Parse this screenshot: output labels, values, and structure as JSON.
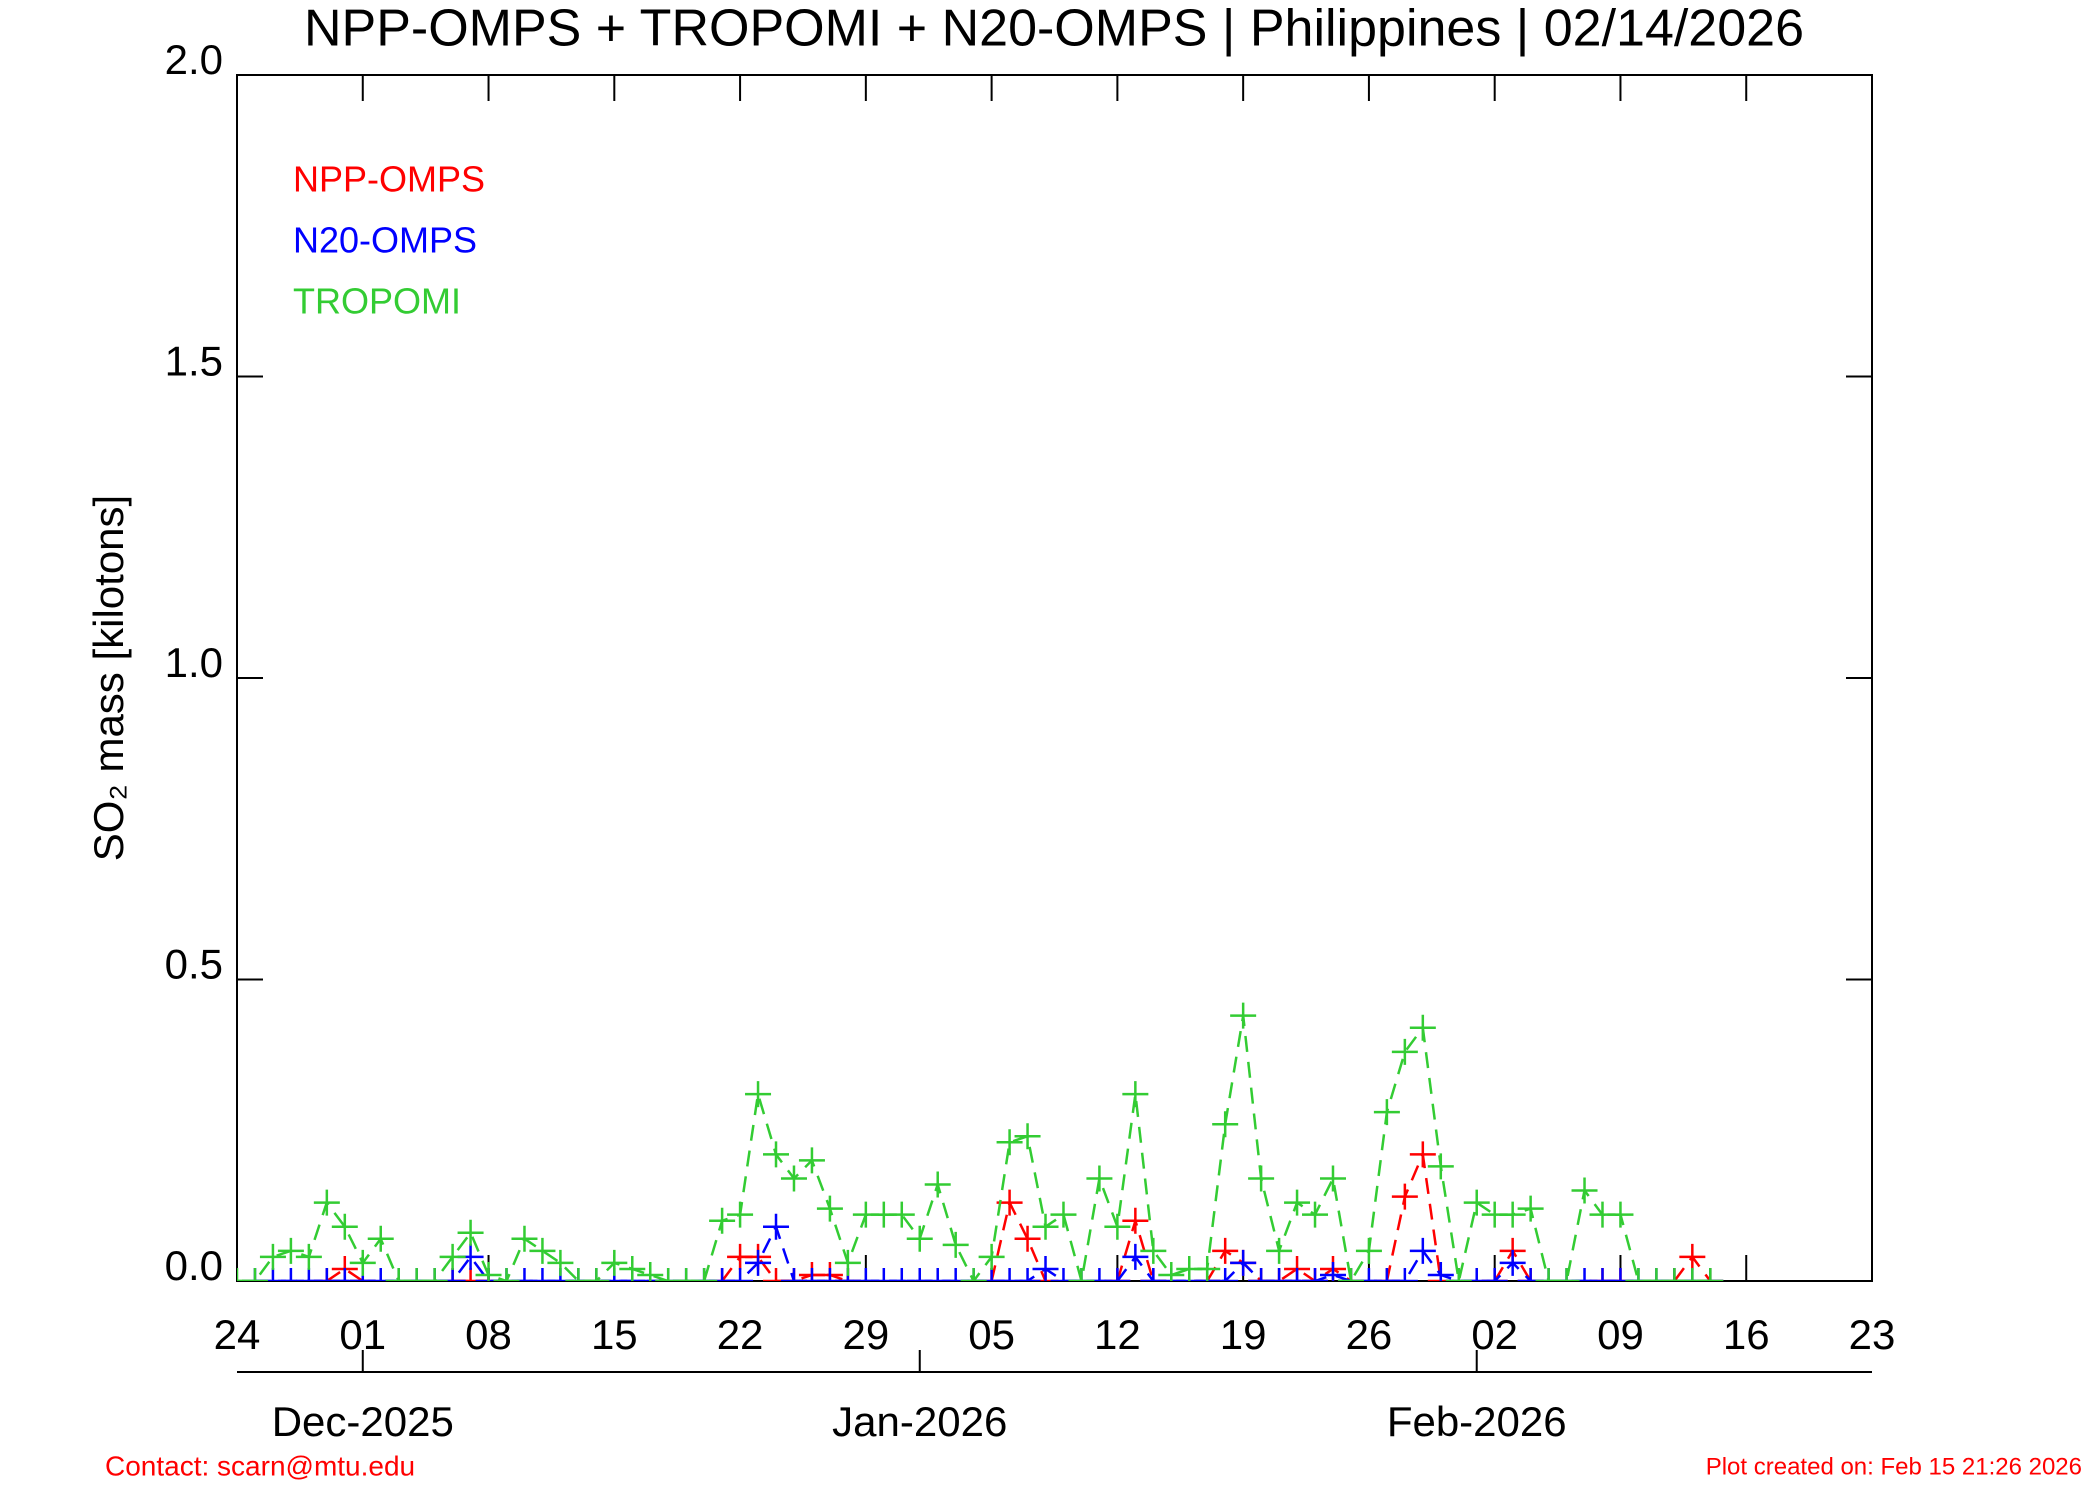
{
  "chart_data": {
    "type": "line",
    "title": "NPP-OMPS + TROPOMI + N20-OMPS | Philippines | 02/14/2026",
    "ylabel": "SO₂ mass [kilotons]",
    "x": [
      "2025-11-24",
      "2025-11-25",
      "2025-11-26",
      "2025-11-27",
      "2025-11-28",
      "2025-11-29",
      "2025-11-30",
      "2025-12-01",
      "2025-12-02",
      "2025-12-03",
      "2025-12-04",
      "2025-12-05",
      "2025-12-06",
      "2025-12-07",
      "2025-12-08",
      "2025-12-09",
      "2025-12-10",
      "2025-12-11",
      "2025-12-12",
      "2025-12-13",
      "2025-12-14",
      "2025-12-15",
      "2025-12-16",
      "2025-12-17",
      "2025-12-18",
      "2025-12-19",
      "2025-12-20",
      "2025-12-21",
      "2025-12-22",
      "2025-12-23",
      "2025-12-24",
      "2025-12-25",
      "2025-12-26",
      "2025-12-27",
      "2025-12-28",
      "2025-12-29",
      "2025-12-30",
      "2025-12-31",
      "2026-01-01",
      "2026-01-02",
      "2026-01-03",
      "2026-01-04",
      "2026-01-05",
      "2026-01-06",
      "2026-01-07",
      "2026-01-08",
      "2026-01-09",
      "2026-01-10",
      "2026-01-11",
      "2026-01-12",
      "2026-01-13",
      "2026-01-14",
      "2026-01-15",
      "2026-01-16",
      "2026-01-17",
      "2026-01-18",
      "2026-01-19",
      "2026-01-20",
      "2026-01-21",
      "2026-01-22",
      "2026-01-23",
      "2026-01-24",
      "2026-01-25",
      "2026-01-26",
      "2026-01-27",
      "2026-01-28",
      "2026-01-29",
      "2026-01-30",
      "2026-01-31",
      "2026-02-01",
      "2026-02-02",
      "2026-02-03",
      "2026-02-04",
      "2026-02-05",
      "2026-02-06",
      "2026-02-07",
      "2026-02-08",
      "2026-02-09",
      "2026-02-10",
      "2026-02-11",
      "2026-02-12",
      "2026-02-13",
      "2026-02-14"
    ],
    "series": [
      {
        "name": "NPP-OMPS",
        "color": "#ff0000",
        "values": [
          null,
          null,
          null,
          null,
          null,
          0,
          0.02,
          0,
          null,
          null,
          null,
          null,
          0,
          0,
          0,
          null,
          null,
          null,
          null,
          null,
          null,
          null,
          null,
          null,
          null,
          null,
          null,
          0,
          0.04,
          0.04,
          0,
          0,
          0.01,
          0.01,
          0,
          null,
          null,
          null,
          null,
          null,
          null,
          null,
          0,
          0.13,
          0.07,
          0,
          null,
          null,
          null,
          0,
          0.1,
          0,
          null,
          null,
          0,
          0.05,
          0.03,
          0,
          0,
          0.02,
          0,
          0.02,
          0,
          null,
          0,
          0.14,
          0.21,
          0,
          null,
          null,
          0,
          0.05,
          0,
          null,
          null,
          null,
          0,
          0,
          null,
          null,
          0,
          0.04,
          0
        ]
      },
      {
        "name": "N20-OMPS",
        "color": "#0000ff",
        "values": [
          null,
          0,
          0,
          0,
          0,
          0,
          0,
          0,
          0,
          0,
          0,
          0,
          0,
          0.04,
          0,
          0,
          0,
          0,
          0,
          0,
          0,
          0,
          0,
          0,
          0,
          0,
          0,
          0,
          0,
          0.03,
          0.09,
          0,
          0,
          0,
          0,
          0,
          0,
          0,
          0,
          0,
          0,
          0,
          0,
          0,
          0,
          0.02,
          0,
          0,
          0,
          0,
          0.04,
          0,
          0,
          0,
          0,
          0,
          0.03,
          0,
          0,
          0,
          0,
          0.01,
          0,
          0,
          0,
          0,
          0.05,
          0.01,
          0,
          0,
          0,
          0.03,
          0,
          0,
          0,
          0,
          0,
          0,
          0,
          0,
          0,
          0,
          0
        ]
      },
      {
        "name": "TROPOMI",
        "color": "#33cc33",
        "values": [
          0,
          0,
          0.04,
          0.05,
          0.04,
          0.13,
          0.09,
          0.03,
          0.07,
          0,
          0,
          0,
          0.04,
          0.08,
          0.01,
          0,
          0.07,
          0.05,
          0.03,
          0,
          0,
          0.03,
          0.02,
          0.01,
          0,
          0,
          0,
          0.1,
          0.11,
          0.31,
          0.21,
          0.17,
          0.2,
          0.12,
          0.03,
          0.11,
          0.11,
          0.11,
          0.07,
          0.16,
          0.06,
          0,
          0.04,
          0.23,
          0.24,
          0.09,
          0.11,
          0,
          0.17,
          0.09,
          0.31,
          0.05,
          0.01,
          0.02,
          0.02,
          0.26,
          0.44,
          0.17,
          0.05,
          0.13,
          0.11,
          0.17,
          0,
          0.05,
          0.28,
          0.38,
          0.42,
          0.19,
          0,
          0.13,
          0.11,
          0.11,
          0.12,
          0,
          0,
          0.15,
          0.11,
          0.11,
          0,
          0,
          0,
          0,
          0
        ]
      }
    ],
    "xlim": [
      "2025-11-24",
      "2026-02-23"
    ],
    "xticks": [
      {
        "value": "2025-11-24",
        "label": "24"
      },
      {
        "value": "2025-12-01",
        "label": "01"
      },
      {
        "value": "2025-12-08",
        "label": "08"
      },
      {
        "value": "2025-12-15",
        "label": "15"
      },
      {
        "value": "2025-12-22",
        "label": "22"
      },
      {
        "value": "2025-12-29",
        "label": "29"
      },
      {
        "value": "2026-01-05",
        "label": "05"
      },
      {
        "value": "2026-01-12",
        "label": "12"
      },
      {
        "value": "2026-01-19",
        "label": "19"
      },
      {
        "value": "2026-01-26",
        "label": "26"
      },
      {
        "value": "2026-02-02",
        "label": "02"
      },
      {
        "value": "2026-02-09",
        "label": "09"
      },
      {
        "value": "2026-02-16",
        "label": "16"
      },
      {
        "value": "2026-02-23",
        "label": "23"
      }
    ],
    "month_ticks": [
      {
        "value": "2025-12-01",
        "label": "Dec-2025"
      },
      {
        "value": "2026-01-01",
        "label": "Jan-2026"
      },
      {
        "value": "2026-02-01",
        "label": "Feb-2026"
      }
    ],
    "ylim": [
      0,
      2.0
    ],
    "yticks": [
      {
        "value": 0,
        "label": "0.0"
      },
      {
        "value": 0.5,
        "label": "0.5"
      },
      {
        "value": 1.0,
        "label": "1.0"
      },
      {
        "value": 1.5,
        "label": "1.5"
      },
      {
        "value": 2.0,
        "label": "2.0"
      }
    ],
    "legend": "upper left",
    "footer_left": "Contact: scarn@mtu.edu",
    "footer_right": "Plot created on: Feb 15 21:26 2026"
  }
}
